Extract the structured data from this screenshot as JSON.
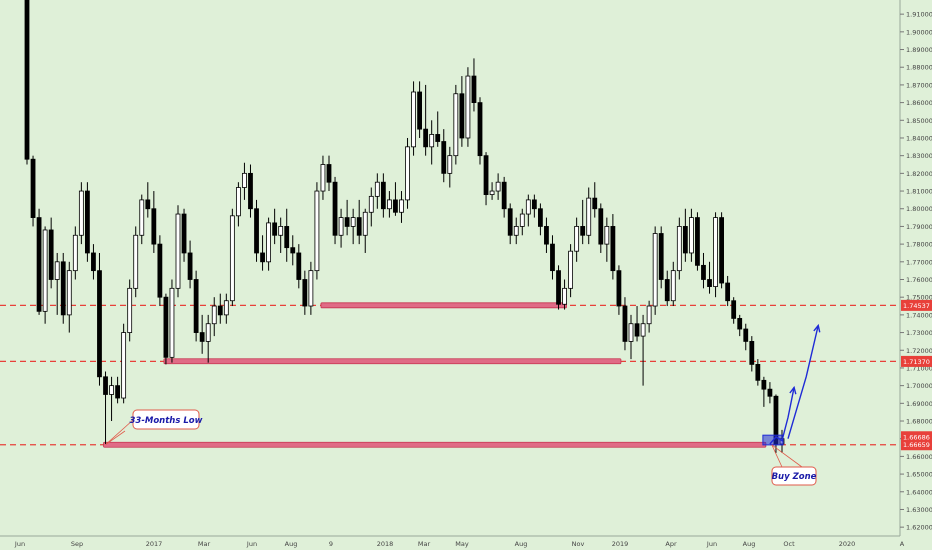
{
  "colors": {
    "background": "#dff0d8",
    "candle_up": "#ffffff",
    "candle_down": "#000000",
    "candle_border": "#000000",
    "level_line": "#e8403a",
    "zone_fill": "#e06b86",
    "zone_border": "#c7334f",
    "annotation_border": "#e05a4a",
    "annotation_text": "#1a1aa8",
    "projection_arrow": "#1f2bd6",
    "price_tag_bg": "#e8403a",
    "price_tag_text": "#ffffff",
    "axis_text": "#444444"
  },
  "chart_data": {
    "type": "candlestick",
    "timeframe": "weekly",
    "x_axis": {
      "tick_labels": [
        "Jun",
        "Sep",
        "2017",
        "Mar",
        "Jun",
        "Aug",
        "9",
        "2018",
        "Mar",
        "May",
        "Aug",
        "Nov",
        "2019",
        "Apr",
        "Jun",
        "Aug",
        "Oct",
        "2020",
        "A"
      ]
    },
    "y_axis": {
      "side": "right",
      "range": [
        1.615,
        1.918
      ],
      "tick_values": [
        1.62,
        1.63,
        1.64,
        1.65,
        1.66,
        1.67,
        1.68,
        1.69,
        1.7,
        1.71,
        1.72,
        1.73,
        1.74,
        1.75,
        1.76,
        1.77,
        1.78,
        1.79,
        1.8,
        1.81,
        1.82,
        1.83,
        1.84,
        1.85,
        1.86,
        1.87,
        1.88,
        1.89,
        1.9,
        1.91
      ],
      "tick_labels": [
        "1.62000",
        "1.63000",
        "1.64000",
        "1.65000",
        "1.66000",
        "1.67000",
        "1.68000",
        "1.69000",
        "1.70000",
        "1.71000",
        "1.72000",
        "1.73000",
        "1.74000",
        "1.75000",
        "1.76000",
        "1.77000",
        "1.78000",
        "1.79000",
        "1.80000",
        "1.81000",
        "1.82000",
        "1.83000",
        "1.84000",
        "1.85000",
        "1.86000",
        "1.87000",
        "1.88000",
        "1.89000",
        "1.90000",
        "1.91000"
      ]
    },
    "candles": [
      {
        "o": 1.93,
        "h": 1.94,
        "l": 1.825,
        "c": 1.828
      },
      {
        "o": 1.828,
        "h": 1.83,
        "l": 1.79,
        "c": 1.795
      },
      {
        "o": 1.795,
        "h": 1.8,
        "l": 1.74,
        "c": 1.742
      },
      {
        "o": 1.742,
        "h": 1.79,
        "l": 1.735,
        "c": 1.788
      },
      {
        "o": 1.788,
        "h": 1.795,
        "l": 1.755,
        "c": 1.76
      },
      {
        "o": 1.76,
        "h": 1.775,
        "l": 1.74,
        "c": 1.77
      },
      {
        "o": 1.77,
        "h": 1.775,
        "l": 1.735,
        "c": 1.74
      },
      {
        "o": 1.74,
        "h": 1.77,
        "l": 1.73,
        "c": 1.765
      },
      {
        "o": 1.765,
        "h": 1.79,
        "l": 1.76,
        "c": 1.785
      },
      {
        "o": 1.785,
        "h": 1.815,
        "l": 1.78,
        "c": 1.81
      },
      {
        "o": 1.81,
        "h": 1.815,
        "l": 1.77,
        "c": 1.775
      },
      {
        "o": 1.775,
        "h": 1.78,
        "l": 1.76,
        "c": 1.765
      },
      {
        "o": 1.765,
        "h": 1.775,
        "l": 1.7,
        "c": 1.705
      },
      {
        "o": 1.705,
        "h": 1.708,
        "l": 1.667,
        "c": 1.695
      },
      {
        "o": 1.695,
        "h": 1.705,
        "l": 1.68,
        "c": 1.7
      },
      {
        "o": 1.7,
        "h": 1.705,
        "l": 1.69,
        "c": 1.693
      },
      {
        "o": 1.693,
        "h": 1.735,
        "l": 1.69,
        "c": 1.73
      },
      {
        "o": 1.73,
        "h": 1.76,
        "l": 1.725,
        "c": 1.755
      },
      {
        "o": 1.755,
        "h": 1.79,
        "l": 1.75,
        "c": 1.785
      },
      {
        "o": 1.785,
        "h": 1.808,
        "l": 1.78,
        "c": 1.805
      },
      {
        "o": 1.805,
        "h": 1.815,
        "l": 1.795,
        "c": 1.8
      },
      {
        "o": 1.8,
        "h": 1.81,
        "l": 1.775,
        "c": 1.78
      },
      {
        "o": 1.78,
        "h": 1.785,
        "l": 1.745,
        "c": 1.75
      },
      {
        "o": 1.75,
        "h": 1.752,
        "l": 1.712,
        "c": 1.716
      },
      {
        "o": 1.716,
        "h": 1.76,
        "l": 1.713,
        "c": 1.755
      },
      {
        "o": 1.755,
        "h": 1.802,
        "l": 1.75,
        "c": 1.797
      },
      {
        "o": 1.797,
        "h": 1.8,
        "l": 1.77,
        "c": 1.775
      },
      {
        "o": 1.775,
        "h": 1.782,
        "l": 1.755,
        "c": 1.76
      },
      {
        "o": 1.76,
        "h": 1.765,
        "l": 1.725,
        "c": 1.73
      },
      {
        "o": 1.73,
        "h": 1.74,
        "l": 1.718,
        "c": 1.725
      },
      {
        "o": 1.725,
        "h": 1.74,
        "l": 1.713,
        "c": 1.735
      },
      {
        "o": 1.735,
        "h": 1.75,
        "l": 1.728,
        "c": 1.745
      },
      {
        "o": 1.745,
        "h": 1.752,
        "l": 1.735,
        "c": 1.74
      },
      {
        "o": 1.74,
        "h": 1.752,
        "l": 1.735,
        "c": 1.748
      },
      {
        "o": 1.748,
        "h": 1.8,
        "l": 1.745,
        "c": 1.796
      },
      {
        "o": 1.796,
        "h": 1.815,
        "l": 1.79,
        "c": 1.812
      },
      {
        "o": 1.812,
        "h": 1.826,
        "l": 1.805,
        "c": 1.82
      },
      {
        "o": 1.82,
        "h": 1.825,
        "l": 1.795,
        "c": 1.8
      },
      {
        "o": 1.8,
        "h": 1.805,
        "l": 1.77,
        "c": 1.775
      },
      {
        "o": 1.775,
        "h": 1.785,
        "l": 1.765,
        "c": 1.77
      },
      {
        "o": 1.77,
        "h": 1.795,
        "l": 1.765,
        "c": 1.792
      },
      {
        "o": 1.792,
        "h": 1.8,
        "l": 1.78,
        "c": 1.785
      },
      {
        "o": 1.785,
        "h": 1.795,
        "l": 1.775,
        "c": 1.79
      },
      {
        "o": 1.79,
        "h": 1.8,
        "l": 1.77,
        "c": 1.778
      },
      {
        "o": 1.778,
        "h": 1.785,
        "l": 1.768,
        "c": 1.775
      },
      {
        "o": 1.775,
        "h": 1.78,
        "l": 1.755,
        "c": 1.76
      },
      {
        "o": 1.76,
        "h": 1.765,
        "l": 1.74,
        "c": 1.745
      },
      {
        "o": 1.745,
        "h": 1.77,
        "l": 1.74,
        "c": 1.765
      },
      {
        "o": 1.765,
        "h": 1.815,
        "l": 1.76,
        "c": 1.81
      },
      {
        "o": 1.81,
        "h": 1.83,
        "l": 1.805,
        "c": 1.825
      },
      {
        "o": 1.825,
        "h": 1.83,
        "l": 1.81,
        "c": 1.815
      },
      {
        "o": 1.815,
        "h": 1.818,
        "l": 1.78,
        "c": 1.785
      },
      {
        "o": 1.785,
        "h": 1.8,
        "l": 1.778,
        "c": 1.795
      },
      {
        "o": 1.795,
        "h": 1.805,
        "l": 1.785,
        "c": 1.79
      },
      {
        "o": 1.79,
        "h": 1.8,
        "l": 1.78,
        "c": 1.795
      },
      {
        "o": 1.795,
        "h": 1.805,
        "l": 1.78,
        "c": 1.785
      },
      {
        "o": 1.785,
        "h": 1.8,
        "l": 1.775,
        "c": 1.798
      },
      {
        "o": 1.798,
        "h": 1.812,
        "l": 1.79,
        "c": 1.807
      },
      {
        "o": 1.807,
        "h": 1.82,
        "l": 1.8,
        "c": 1.815
      },
      {
        "o": 1.815,
        "h": 1.82,
        "l": 1.795,
        "c": 1.8
      },
      {
        "o": 1.8,
        "h": 1.81,
        "l": 1.795,
        "c": 1.805
      },
      {
        "o": 1.805,
        "h": 1.815,
        "l": 1.796,
        "c": 1.798
      },
      {
        "o": 1.798,
        "h": 1.81,
        "l": 1.792,
        "c": 1.805
      },
      {
        "o": 1.805,
        "h": 1.84,
        "l": 1.8,
        "c": 1.835
      },
      {
        "o": 1.835,
        "h": 1.872,
        "l": 1.83,
        "c": 1.866
      },
      {
        "o": 1.866,
        "h": 1.872,
        "l": 1.84,
        "c": 1.845
      },
      {
        "o": 1.845,
        "h": 1.87,
        "l": 1.83,
        "c": 1.835
      },
      {
        "o": 1.835,
        "h": 1.85,
        "l": 1.825,
        "c": 1.842
      },
      {
        "o": 1.842,
        "h": 1.855,
        "l": 1.835,
        "c": 1.838
      },
      {
        "o": 1.838,
        "h": 1.845,
        "l": 1.815,
        "c": 1.82
      },
      {
        "o": 1.82,
        "h": 1.835,
        "l": 1.812,
        "c": 1.83
      },
      {
        "o": 1.83,
        "h": 1.87,
        "l": 1.825,
        "c": 1.865
      },
      {
        "o": 1.865,
        "h": 1.875,
        "l": 1.835,
        "c": 1.84
      },
      {
        "o": 1.84,
        "h": 1.88,
        "l": 1.835,
        "c": 1.875
      },
      {
        "o": 1.875,
        "h": 1.885,
        "l": 1.855,
        "c": 1.86
      },
      {
        "o": 1.86,
        "h": 1.863,
        "l": 1.825,
        "c": 1.83
      },
      {
        "o": 1.83,
        "h": 1.832,
        "l": 1.802,
        "c": 1.808
      },
      {
        "o": 1.808,
        "h": 1.815,
        "l": 1.805,
        "c": 1.81
      },
      {
        "o": 1.81,
        "h": 1.82,
        "l": 1.805,
        "c": 1.815
      },
      {
        "o": 1.815,
        "h": 1.818,
        "l": 1.795,
        "c": 1.8
      },
      {
        "o": 1.8,
        "h": 1.803,
        "l": 1.78,
        "c": 1.785
      },
      {
        "o": 1.785,
        "h": 1.795,
        "l": 1.78,
        "c": 1.79
      },
      {
        "o": 1.79,
        "h": 1.8,
        "l": 1.785,
        "c": 1.797
      },
      {
        "o": 1.797,
        "h": 1.808,
        "l": 1.79,
        "c": 1.805
      },
      {
        "o": 1.805,
        "h": 1.808,
        "l": 1.795,
        "c": 1.8
      },
      {
        "o": 1.8,
        "h": 1.803,
        "l": 1.785,
        "c": 1.79
      },
      {
        "o": 1.79,
        "h": 1.795,
        "l": 1.775,
        "c": 1.78
      },
      {
        "o": 1.78,
        "h": 1.785,
        "l": 1.76,
        "c": 1.765
      },
      {
        "o": 1.765,
        "h": 1.768,
        "l": 1.743,
        "c": 1.746
      },
      {
        "o": 1.746,
        "h": 1.76,
        "l": 1.743,
        "c": 1.755
      },
      {
        "o": 1.755,
        "h": 1.78,
        "l": 1.75,
        "c": 1.776
      },
      {
        "o": 1.776,
        "h": 1.795,
        "l": 1.77,
        "c": 1.79
      },
      {
        "o": 1.79,
        "h": 1.805,
        "l": 1.78,
        "c": 1.785
      },
      {
        "o": 1.785,
        "h": 1.812,
        "l": 1.78,
        "c": 1.806
      },
      {
        "o": 1.806,
        "h": 1.815,
        "l": 1.795,
        "c": 1.8
      },
      {
        "o": 1.8,
        "h": 1.803,
        "l": 1.775,
        "c": 1.78
      },
      {
        "o": 1.78,
        "h": 1.795,
        "l": 1.77,
        "c": 1.79
      },
      {
        "o": 1.79,
        "h": 1.797,
        "l": 1.76,
        "c": 1.765
      },
      {
        "o": 1.765,
        "h": 1.768,
        "l": 1.74,
        "c": 1.745
      },
      {
        "o": 1.745,
        "h": 1.75,
        "l": 1.72,
        "c": 1.725
      },
      {
        "o": 1.725,
        "h": 1.74,
        "l": 1.715,
        "c": 1.735
      },
      {
        "o": 1.735,
        "h": 1.745,
        "l": 1.725,
        "c": 1.728
      },
      {
        "o": 1.728,
        "h": 1.74,
        "l": 1.7,
        "c": 1.735
      },
      {
        "o": 1.735,
        "h": 1.748,
        "l": 1.73,
        "c": 1.745
      },
      {
        "o": 1.745,
        "h": 1.79,
        "l": 1.74,
        "c": 1.786
      },
      {
        "o": 1.786,
        "h": 1.79,
        "l": 1.755,
        "c": 1.76
      },
      {
        "o": 1.76,
        "h": 1.765,
        "l": 1.745,
        "c": 1.748
      },
      {
        "o": 1.748,
        "h": 1.77,
        "l": 1.745,
        "c": 1.765
      },
      {
        "o": 1.765,
        "h": 1.795,
        "l": 1.76,
        "c": 1.79
      },
      {
        "o": 1.79,
        "h": 1.8,
        "l": 1.77,
        "c": 1.775
      },
      {
        "o": 1.775,
        "h": 1.8,
        "l": 1.77,
        "c": 1.795
      },
      {
        "o": 1.795,
        "h": 1.798,
        "l": 1.765,
        "c": 1.768
      },
      {
        "o": 1.768,
        "h": 1.775,
        "l": 1.755,
        "c": 1.76
      },
      {
        "o": 1.76,
        "h": 1.77,
        "l": 1.752,
        "c": 1.756
      },
      {
        "o": 1.756,
        "h": 1.798,
        "l": 1.75,
        "c": 1.795
      },
      {
        "o": 1.795,
        "h": 1.798,
        "l": 1.755,
        "c": 1.758
      },
      {
        "o": 1.758,
        "h": 1.762,
        "l": 1.745,
        "c": 1.748
      },
      {
        "o": 1.748,
        "h": 1.75,
        "l": 1.735,
        "c": 1.738
      },
      {
        "o": 1.738,
        "h": 1.74,
        "l": 1.728,
        "c": 1.732
      },
      {
        "o": 1.732,
        "h": 1.735,
        "l": 1.72,
        "c": 1.725
      },
      {
        "o": 1.725,
        "h": 1.728,
        "l": 1.708,
        "c": 1.712
      },
      {
        "o": 1.712,
        "h": 1.715,
        "l": 1.7,
        "c": 1.703
      },
      {
        "o": 1.703,
        "h": 1.705,
        "l": 1.688,
        "c": 1.698
      },
      {
        "o": 1.698,
        "h": 1.702,
        "l": 1.69,
        "c": 1.694
      },
      {
        "o": 1.694,
        "h": 1.695,
        "l": 1.662,
        "c": 1.667
      },
      {
        "o": 1.667,
        "h": 1.675,
        "l": 1.662,
        "c": 1.67
      }
    ],
    "horizontal_levels": [
      {
        "value": 1.74537,
        "label": "1.74537",
        "style": "dashed"
      },
      {
        "value": 1.7137,
        "label": "1.71370",
        "style": "dashed"
      },
      {
        "value": 1.66659,
        "label": "1.66659",
        "style": "dashed"
      }
    ],
    "current_price_label": "1.66686",
    "zones": [
      {
        "x_start": 49,
        "x_end": 89,
        "price": 1.7454
      },
      {
        "x_start": 23,
        "x_end": 98,
        "price": 1.7138
      },
      {
        "x_start": 13,
        "x_end": 122,
        "price": 1.6666
      }
    ],
    "buy_zone": {
      "x_start": 122,
      "x_end": 125,
      "low": 1.6665,
      "high": 1.672
    },
    "projection_path": [
      [
        123,
        1.667
      ],
      [
        124,
        1.671
      ],
      [
        125,
        1.669
      ],
      [
        126,
        1.682
      ],
      [
        127,
        1.699
      ]
    ],
    "projection_path_2": [
      [
        126,
        1.67
      ],
      [
        129,
        1.705
      ],
      [
        131,
        1.734
      ]
    ],
    "annotations": [
      {
        "id": "33-months-low",
        "text": "33-Months Low"
      },
      {
        "id": "buy-zone",
        "text": "Buy Zone"
      }
    ]
  }
}
